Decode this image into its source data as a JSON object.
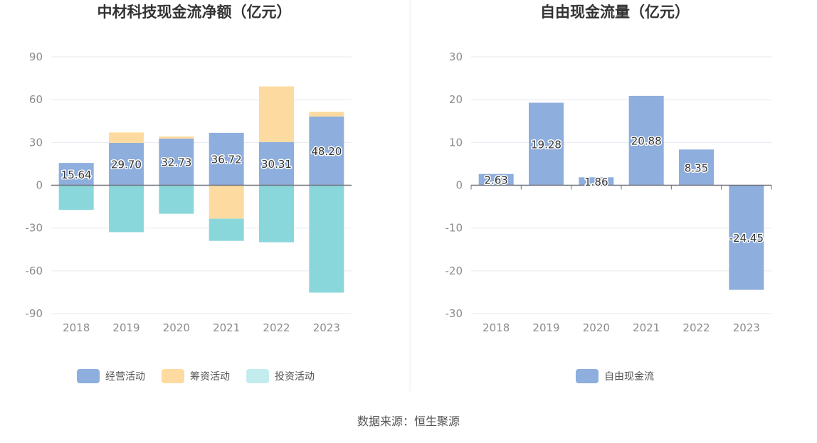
{
  "source": "数据来源：恒生聚源",
  "colors": {
    "operating": "#8eaedd",
    "financing": "#fddba0",
    "investing": "#8ad7db",
    "investing_legend": "#c3ecee",
    "free_cash": "#8eaedd",
    "grid": "#e6e9f0",
    "axis": "#6e7079",
    "divider": "#eeeeee"
  },
  "chart_data": [
    {
      "type": "bar",
      "stacked": true,
      "title": "中材科技现金流净额（亿元）",
      "categories": [
        "2018",
        "2019",
        "2020",
        "2021",
        "2022",
        "2023"
      ],
      "ylim": [
        -90,
        90
      ],
      "yticks": [
        "90",
        "60",
        "30",
        "0",
        "-30",
        "-60",
        "-90"
      ],
      "grid": true,
      "legend_position": "bottom",
      "series": [
        {
          "name": "经营活动",
          "color_key": "operating",
          "values": [
            15.64,
            29.7,
            32.73,
            36.72,
            30.31,
            48.2
          ],
          "labels": [
            "15.64",
            "29.70",
            "32.73",
            "36.72",
            "30.31",
            "48.20"
          ]
        },
        {
          "name": "筹资活动",
          "color_key": "financing",
          "values": [
            -0.3,
            7.3,
            1.5,
            -23.5,
            39.0,
            3.3
          ]
        },
        {
          "name": "投资活动",
          "color_key": "investing",
          "values": [
            -17.0,
            -32.9,
            -20.0,
            -15.5,
            -40.0,
            -75.3
          ]
        }
      ]
    },
    {
      "type": "bar",
      "title": "自由现金流量（亿元）",
      "categories": [
        "2018",
        "2019",
        "2020",
        "2021",
        "2022",
        "2023"
      ],
      "ylim": [
        -30,
        30
      ],
      "yticks": [
        "30",
        "20",
        "10",
        "0",
        "-10",
        "-20",
        "-30"
      ],
      "grid": true,
      "legend_position": "bottom",
      "series": [
        {
          "name": "自由现金流",
          "color_key": "free_cash",
          "values": [
            2.63,
            19.28,
            1.86,
            20.88,
            8.35,
            -24.45
          ],
          "labels": [
            "2.63",
            "19.28",
            "1.86",
            "20.88",
            "8.35",
            "-24.45"
          ]
        }
      ]
    }
  ]
}
